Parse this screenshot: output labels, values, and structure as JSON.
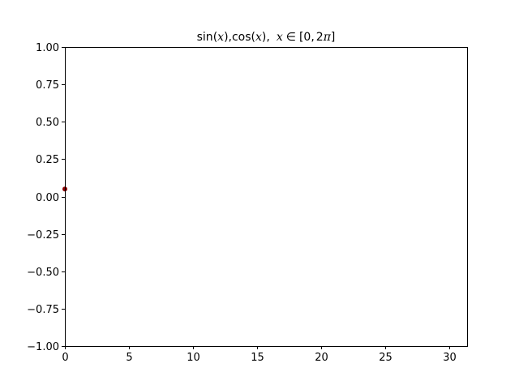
{
  "chart_data": {
    "type": "line",
    "title": {
      "sin": "sin",
      "x": "x",
      "comma": ",",
      "cos": "cos",
      "in": "∈",
      "range_open": "[0,",
      "two": "2",
      "pi": "π",
      "range_close": "]",
      "lparen": "(",
      "rparen": ")"
    },
    "xlabel": "",
    "ylabel": "",
    "xlim": [
      0,
      31.4
    ],
    "ylim": [
      -1.0,
      1.0
    ],
    "x_ticks": [
      0,
      5,
      10,
      15,
      20,
      25,
      30
    ],
    "x_tick_labels": [
      "0",
      "5",
      "10",
      "15",
      "20",
      "25",
      "30"
    ],
    "y_ticks": [
      -1.0,
      -0.75,
      -0.5,
      -0.25,
      0.0,
      0.25,
      0.5,
      0.75,
      1.0
    ],
    "y_tick_labels": [
      "−1.00",
      "−0.75",
      "−0.50",
      "−0.25",
      "0.00",
      "0.25",
      "0.50",
      "0.75",
      "1.00"
    ],
    "grid": false,
    "series": [
      {
        "color": "#8b0000",
        "x": [
          0.0
        ],
        "y": [
          0.05
        ]
      }
    ]
  }
}
